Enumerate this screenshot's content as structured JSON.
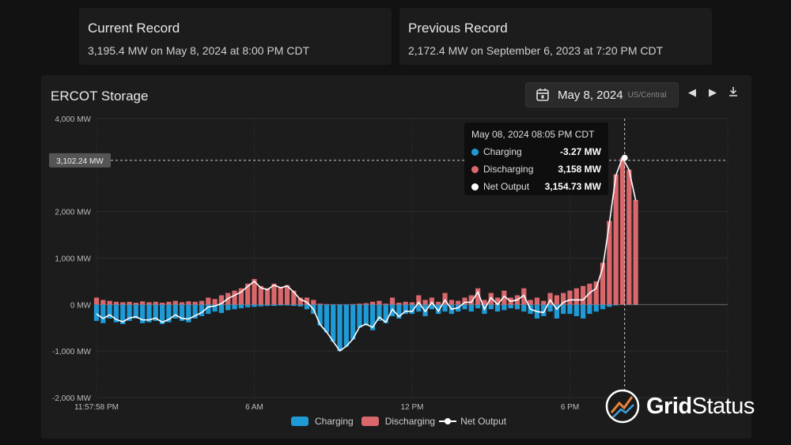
{
  "records": {
    "current": {
      "title": "Current Record",
      "value": "3,195.4 MW on May 8, 2024 at 8:00 PM CDT"
    },
    "previous": {
      "title": "Previous Record",
      "value": "2,172.4 MW on September 6, 2023 at 7:20 PM CDT"
    }
  },
  "chart_header": {
    "title": "ERCOT Storage",
    "date": "May 8, 2024",
    "timezone": "US/Central",
    "icons": [
      "calendar-icon",
      "chevron-left-icon",
      "chevron-right-icon",
      "download-icon"
    ]
  },
  "tooltip": {
    "time": "May 08, 2024 08:05 PM CDT",
    "rows": [
      {
        "label": "Charging",
        "value": "-3.27 MW",
        "color": "#1e9bd7"
      },
      {
        "label": "Discharging",
        "value": "3,158 MW",
        "color": "#d9676b"
      },
      {
        "label": "Net Output",
        "value": "3,154.73 MW",
        "color": "#ffffff"
      }
    ]
  },
  "crosshair_label": "3,102.24 MW",
  "logo": {
    "text1": "Grid",
    "text2": "Status"
  },
  "chart_data": {
    "type": "bar+line",
    "interval_minutes": 15,
    "x_ticks": [
      {
        "h": 0,
        "label": "11:57:58 PM"
      },
      {
        "h": 6,
        "label": "6 AM"
      },
      {
        "h": 12,
        "label": "12 PM"
      },
      {
        "h": 18,
        "label": "6 PM"
      }
    ],
    "y_ticks": [
      {
        "v": 4000,
        "label": "4,000 MW"
      },
      {
        "v": 2000,
        "label": "2,000 MW"
      },
      {
        "v": 1000,
        "label": "1,000 MW"
      },
      {
        "v": 0,
        "label": "0 MW"
      },
      {
        "v": -1000,
        "label": "-1,000 MW"
      },
      {
        "v": -2000,
        "label": "-2,000 MW"
      }
    ],
    "ylim": [
      -2000,
      4000
    ],
    "xlim": [
      0,
      24
    ],
    "grid": true,
    "legend": "bottom",
    "colors": {
      "charging": "#1e9bd7",
      "discharging": "#d9676b",
      "net": "#ffffff"
    },
    "series": [
      {
        "name": "Charging",
        "values": [
          -350,
          -400,
          -300,
          -380,
          -420,
          -350,
          -300,
          -400,
          -380,
          -350,
          -420,
          -380,
          -300,
          -350,
          -380,
          -300,
          -250,
          -200,
          -150,
          -180,
          -120,
          -100,
          -80,
          -60,
          -50,
          -40,
          -30,
          -30,
          -20,
          -20,
          -30,
          -40,
          -100,
          -200,
          -450,
          -600,
          -800,
          -1000,
          -900,
          -750,
          -500,
          -450,
          -550,
          -350,
          -400,
          -250,
          -300,
          -200,
          -200,
          -150,
          -250,
          -100,
          -200,
          -150,
          -200,
          -150,
          -100,
          -150,
          -80,
          -200,
          -100,
          -150,
          -120,
          -80,
          -100,
          -150,
          -200,
          -300,
          -250,
          -150,
          -300,
          -200,
          -200,
          -250,
          -300,
          -200,
          -150,
          -100,
          -50,
          -20,
          -3.27,
          -5,
          -10
        ]
      },
      {
        "name": "Discharging",
        "values": [
          150,
          100,
          80,
          60,
          50,
          60,
          40,
          70,
          50,
          60,
          40,
          60,
          80,
          50,
          70,
          60,
          80,
          150,
          120,
          200,
          250,
          300,
          350,
          450,
          550,
          400,
          350,
          450,
          380,
          420,
          300,
          150,
          150,
          100,
          20,
          10,
          5,
          5,
          5,
          10,
          20,
          30,
          60,
          80,
          20,
          150,
          40,
          60,
          50,
          200,
          100,
          150,
          60,
          250,
          100,
          80,
          150,
          200,
          350,
          100,
          250,
          150,
          300,
          150,
          200,
          350,
          100,
          150,
          80,
          250,
          200,
          250,
          300,
          350,
          400,
          450,
          500,
          900,
          1800,
          2800,
          3158,
          2900,
          2250
        ]
      },
      {
        "name": "Net Output"
      }
    ],
    "crosshair": {
      "time_h": 20.08,
      "value": 3154.73,
      "ref_value": 3102.24
    }
  }
}
